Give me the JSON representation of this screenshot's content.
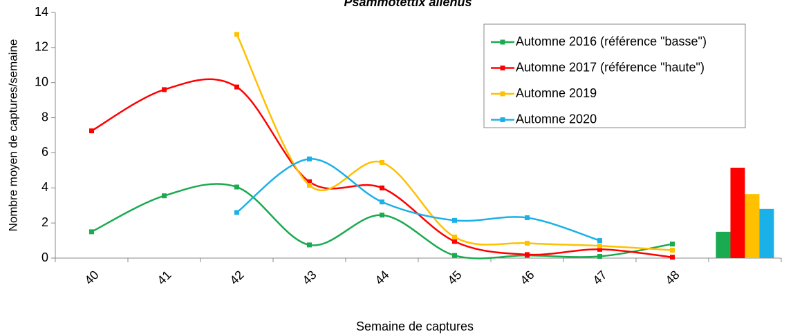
{
  "chart_data": {
    "type": "line",
    "title": "Psammotettix alienus",
    "y_label": "Nombre moyen de captures/semaine",
    "x_label": "Semaine de captures",
    "categories": [
      "40",
      "41",
      "42",
      "43",
      "44",
      "45",
      "46",
      "47",
      "48",
      null
    ],
    "series": [
      {
        "name": "Automne 2016 (référence \"basse\")",
        "color": "#1aaa50",
        "values": [
          1.5,
          3.55,
          4.05,
          0.75,
          2.45,
          0.15,
          0.15,
          0.1,
          0.8,
          null
        ]
      },
      {
        "name": "Automne 2017 (référence \"haute\")",
        "color": "#ff0000",
        "values": [
          7.25,
          9.6,
          9.75,
          4.35,
          4.0,
          0.95,
          0.2,
          0.5,
          0.05,
          null
        ]
      },
      {
        "name": "Automne 2019",
        "color": "#ffc000",
        "values": [
          null,
          null,
          12.75,
          4.15,
          5.45,
          1.2,
          0.85,
          0.7,
          0.45,
          null
        ]
      },
      {
        "name": "Automne 2020",
        "color": "#1ab0e8",
        "values": [
          null,
          null,
          2.6,
          5.65,
          3.2,
          2.15,
          2.3,
          1.0,
          null,
          null
        ]
      }
    ],
    "bars": {
      "values": [
        1.5,
        5.15,
        3.65,
        2.8
      ]
    },
    "ylim": [
      0,
      14
    ],
    "yticks": [
      0,
      2,
      4,
      6,
      8,
      10,
      12,
      14
    ],
    "smooth": true,
    "grid": false,
    "legend": "top-right"
  }
}
